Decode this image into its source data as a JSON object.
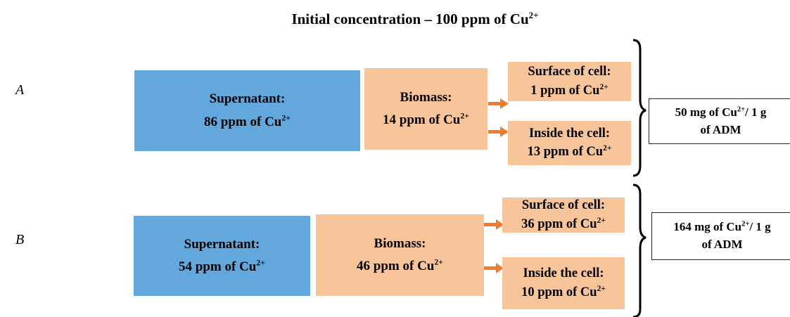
{
  "title": {
    "text": "Initial concentration – 100 ppm of Cu",
    "sup": "2+"
  },
  "panels": [
    {
      "label": "A",
      "supernatant": {
        "heading": "Supernatant:",
        "amount": {
          "text": "86 ppm of Cu",
          "sup": "2+"
        }
      },
      "biomass": {
        "heading": "Biomass:",
        "amount": {
          "text": "14 ppm of Cu",
          "sup": "2+"
        }
      },
      "surface": {
        "heading": "Surface of cell:",
        "amount": {
          "text": "1 ppm of Cu",
          "sup": "2+"
        }
      },
      "inside": {
        "heading": "Inside the cell:",
        "amount": {
          "text": "13 ppm of Cu",
          "sup": "2+"
        }
      },
      "result": {
        "text": "50 mg of Cu",
        "sup": "2+",
        "tail": "/ 1 g",
        "line2": "of ADM"
      }
    },
    {
      "label": "B",
      "supernatant": {
        "heading": "Supernatant:",
        "amount": {
          "text": "54 ppm of Cu",
          "sup": "2+"
        }
      },
      "biomass": {
        "heading": "Biomass:",
        "amount": {
          "text": "46 ppm of Cu",
          "sup": "2+"
        }
      },
      "surface": {
        "heading": "Surface of cell:",
        "amount": {
          "text": "36 ppm of Cu",
          "sup": "2+"
        }
      },
      "inside": {
        "heading": "Inside the cell:",
        "amount": {
          "text": "10 ppm of Cu",
          "sup": "2+"
        }
      },
      "result": {
        "text": "164 mg of Cu",
        "sup": "2+",
        "tail": "/ 1 g",
        "line2": "of ADM"
      }
    }
  ]
}
